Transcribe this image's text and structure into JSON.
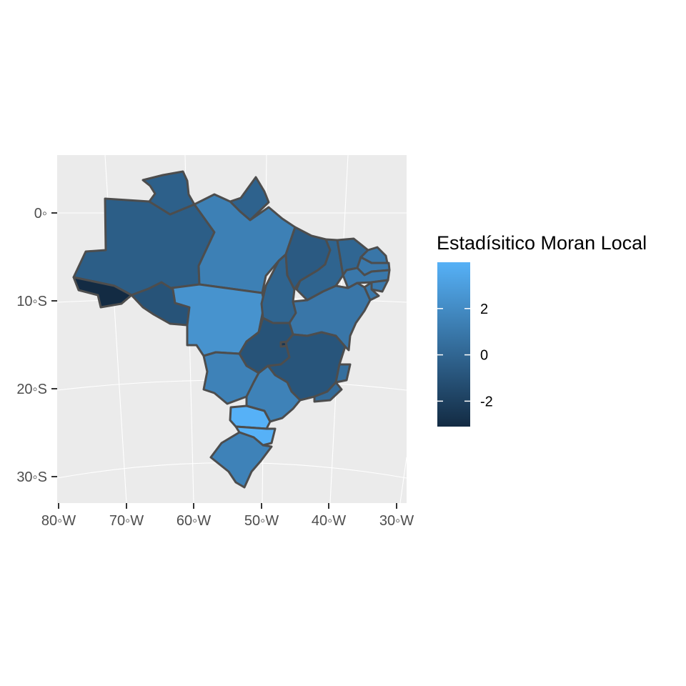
{
  "map": {
    "y_ticks": [
      {
        "value": 0,
        "label": "0◦"
      },
      {
        "value": -10,
        "label": "10◦S"
      },
      {
        "value": -20,
        "label": "20◦S"
      },
      {
        "value": -30,
        "label": "30◦S"
      }
    ],
    "x_ticks": [
      {
        "value": -80,
        "label": "80◦W"
      },
      {
        "value": -70,
        "label": "70◦W"
      },
      {
        "value": -60,
        "label": "60◦W"
      },
      {
        "value": -50,
        "label": "50◦W"
      },
      {
        "value": -40,
        "label": "40◦W"
      },
      {
        "value": -30,
        "label": "30◦W"
      }
    ],
    "panel_background": "#ebebeb",
    "border_color": "#4d4d4d"
  },
  "legend": {
    "title": "Estadísitico Moran Local",
    "breaks": [
      {
        "value": 2,
        "label": "2"
      },
      {
        "value": 0,
        "label": "0"
      },
      {
        "value": -2,
        "label": "-2"
      }
    ],
    "range": [
      -3.1,
      4.0
    ],
    "color_low": "#132b43",
    "color_high": "#56b1f7"
  },
  "regions": [
    {
      "name": "Amazonas",
      "value": -0.4
    },
    {
      "name": "Roraima",
      "value": -0.3
    },
    {
      "name": "Amapá",
      "value": -0.2
    },
    {
      "name": "Pará",
      "value": 1.4
    },
    {
      "name": "Acre",
      "value": -3.1
    },
    {
      "name": "Rondônia",
      "value": -1.0
    },
    {
      "name": "Mato Grosso",
      "value": 2.4
    },
    {
      "name": "Tocantins",
      "value": -0.1
    },
    {
      "name": "Maranhão",
      "value": -0.6
    },
    {
      "name": "Piauí",
      "value": -0.1
    },
    {
      "name": "Ceará",
      "value": 0.0
    },
    {
      "name": "Rio Grande do Norte",
      "value": 0.9
    },
    {
      "name": "Paraíba",
      "value": 1.0
    },
    {
      "name": "Pernambuco",
      "value": 1.0
    },
    {
      "name": "Alagoas",
      "value": 1.0
    },
    {
      "name": "Sergipe",
      "value": 1.0
    },
    {
      "name": "Bahia",
      "value": 0.9
    },
    {
      "name": "Goiás",
      "value": -1.0
    },
    {
      "name": "Distrito Federal",
      "value": -2.5
    },
    {
      "name": "Minas Gerais",
      "value": -0.9
    },
    {
      "name": "Mato Grosso do Sul",
      "value": 1.5
    },
    {
      "name": "São Paulo",
      "value": 1.5
    },
    {
      "name": "Espírito Santo",
      "value": 0.5
    },
    {
      "name": "Rio de Janeiro",
      "value": 0.3
    },
    {
      "name": "Paraná",
      "value": 4.0
    },
    {
      "name": "Santa Catarina",
      "value": 4.0
    },
    {
      "name": "Rio Grande do Sul",
      "value": 1.5
    }
  ]
}
